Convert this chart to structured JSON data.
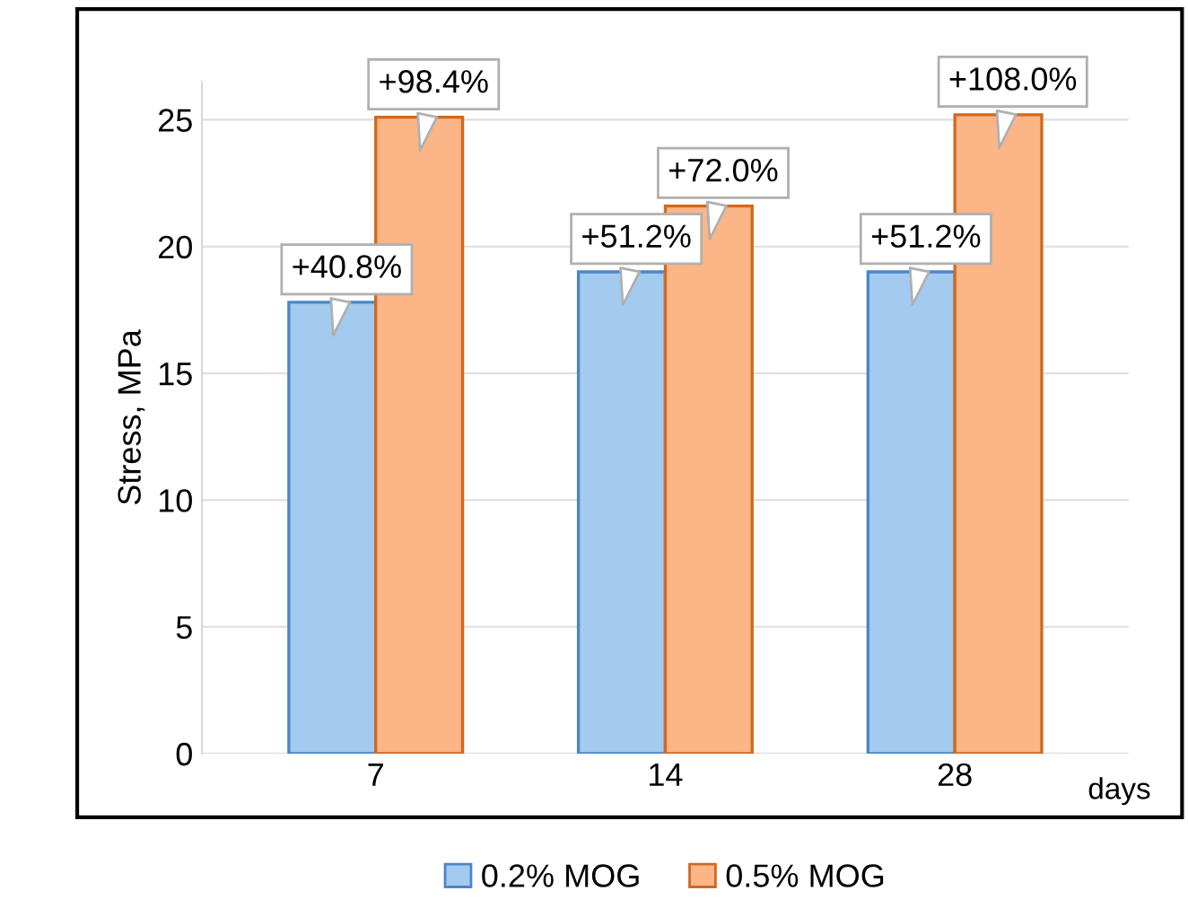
{
  "chart_data": {
    "type": "bar",
    "ylabel": "Stress, MPa",
    "xlabel": "days",
    "categories": [
      "7",
      "14",
      "28"
    ],
    "series": [
      {
        "name": "0.2% MOG",
        "color": "#a3cbf0",
        "values": [
          17.8,
          19.0,
          19.0
        ]
      },
      {
        "name": "0.5% MOG",
        "color": "#fbb586",
        "values": [
          25.1,
          21.6,
          25.2
        ]
      }
    ],
    "ylim": [
      0,
      26.5
    ],
    "yticks": [
      0,
      5,
      10,
      15,
      20,
      25
    ],
    "grid": "y",
    "legend": "bottom",
    "annotations": [
      {
        "text": "+40.8%",
        "x": "7",
        "y": 17.8
      },
      {
        "text": "+98.4%",
        "x": "7",
        "y": 25.1
      },
      {
        "text": "+51.2%",
        "x": "14",
        "y": 19.0
      },
      {
        "text": "+72.0%",
        "x": "14",
        "y": 21.6
      },
      {
        "text": "+51.2%",
        "x": "28",
        "y": 19.0
      },
      {
        "text": "+108.0%",
        "x": "28",
        "y": 25.2
      }
    ]
  }
}
